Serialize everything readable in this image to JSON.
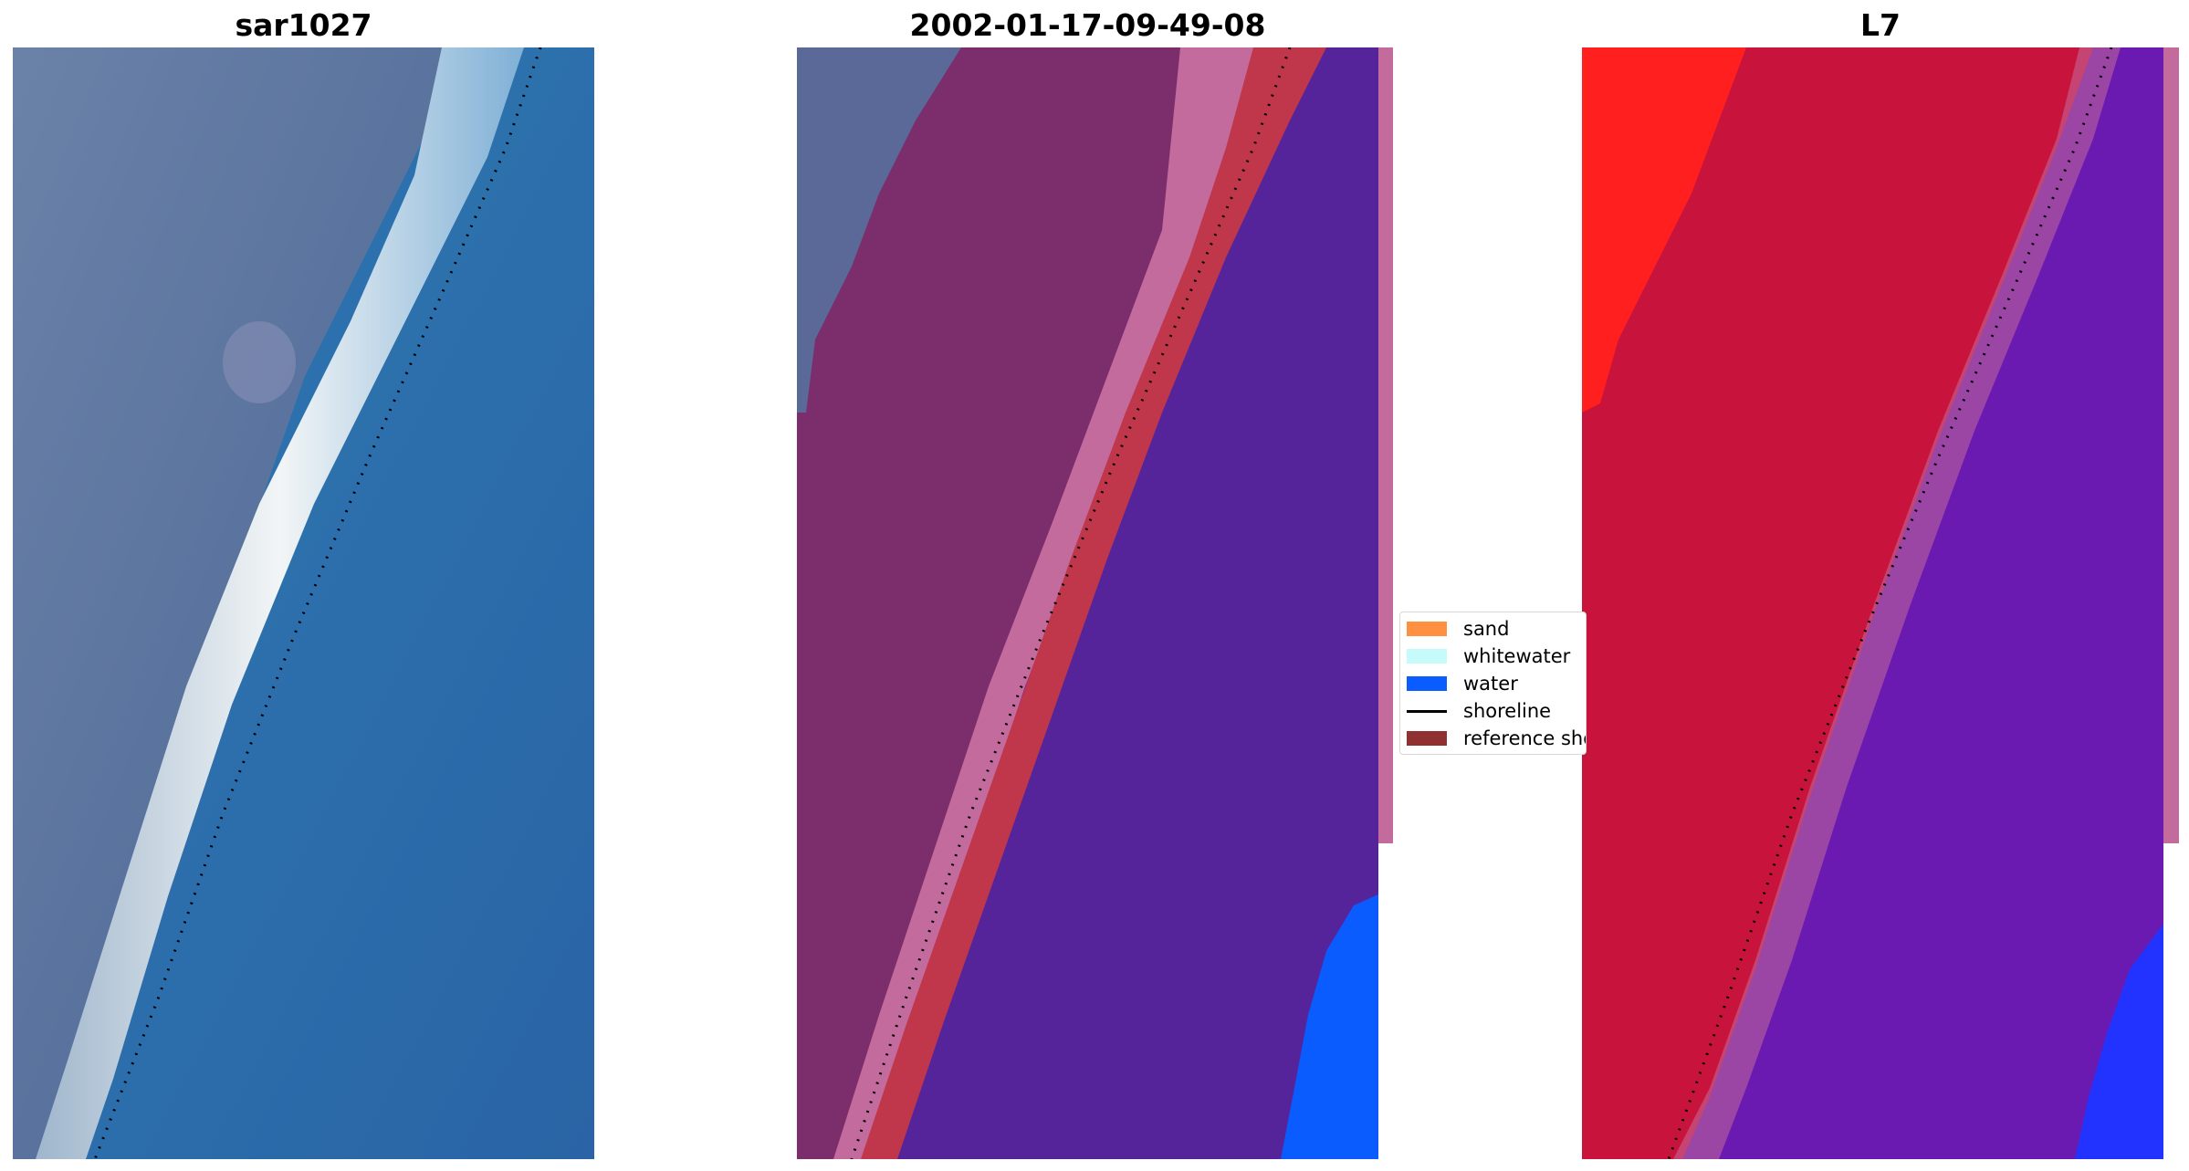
{
  "panels": [
    {
      "title": "sar1027"
    },
    {
      "title": "2002-01-17-09-49-08"
    },
    {
      "title": "L7"
    }
  ],
  "legend": {
    "items": [
      {
        "label": "sand",
        "kind": "patch",
        "color": "#ff9040"
      },
      {
        "label": "whitewater",
        "kind": "patch",
        "color": "#c6fbfb"
      },
      {
        "label": "water",
        "kind": "patch",
        "color": "#0a5cff"
      },
      {
        "label": "shoreline",
        "kind": "line",
        "color": "#000000"
      },
      {
        "label": "reference shoreline",
        "kind": "patch",
        "color": "#913030"
      }
    ]
  },
  "colors": {
    "rgb_land": "#56709c",
    "rgb_ocean": "#2f75ad",
    "rgb_beach": "#e8eef2",
    "classified_land": "#7b2d6c",
    "classified_sand_overlay": "#c0374c",
    "classified_water": "#55249a",
    "classified_pink_edge": "#c26b9c",
    "classified_water_patch": "#0a5cff",
    "mndwi_land": "#c8143c",
    "mndwi_red": "#ff1111",
    "mndwi_water": "#6a1ab0",
    "mndwi_blue": "#2233ff",
    "shoreline_dots": "#000000"
  }
}
